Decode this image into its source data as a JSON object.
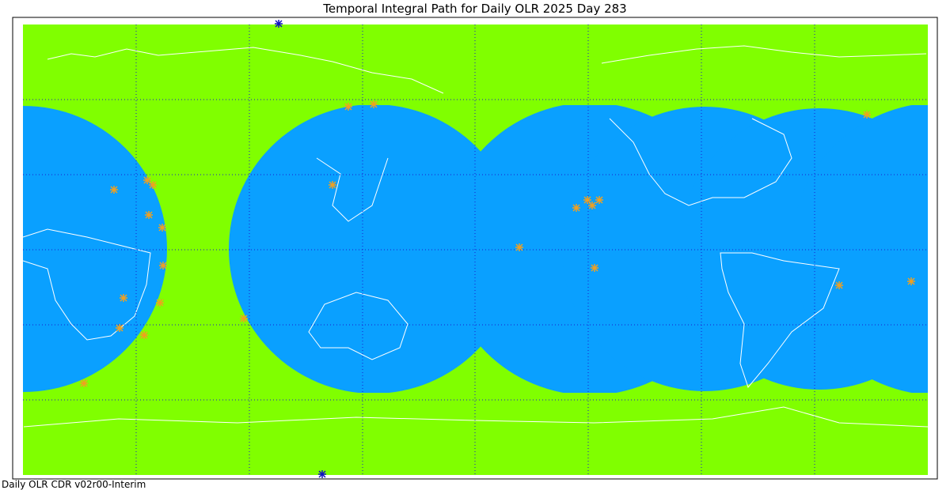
{
  "header": {
    "title": "Temporal Integral Path for Daily OLR 2025 Day 283"
  },
  "footer": {
    "text": "Daily OLR CDR v02r00-Interim"
  }
}
